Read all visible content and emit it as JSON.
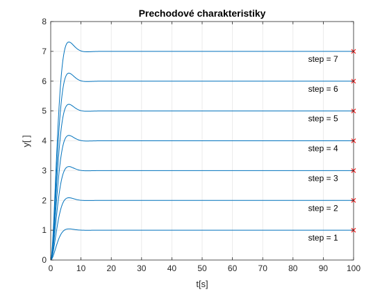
{
  "chart_data": {
    "type": "line",
    "title": "Prechodové charakteristiky",
    "xlabel": "t[s]",
    "ylabel": "y[ ]",
    "xlim": [
      0,
      100
    ],
    "ylim": [
      0,
      8
    ],
    "xticks": [
      0,
      10,
      20,
      30,
      40,
      50,
      60,
      70,
      80,
      90,
      100
    ],
    "yticks": [
      0,
      1,
      2,
      3,
      4,
      5,
      6,
      7,
      8
    ],
    "grid": true,
    "line_color": "#0072BD",
    "marker_color": "#FF0000",
    "peak_overshoot_fraction": 0.045,
    "peak_time": 6,
    "settling_time": 15,
    "series": [
      {
        "label": "step = 1",
        "final_value": 1,
        "end_marker": [
          100,
          1
        ]
      },
      {
        "label": "step = 2",
        "final_value": 2,
        "end_marker": [
          100,
          2
        ]
      },
      {
        "label": "step = 3",
        "final_value": 3,
        "end_marker": [
          100,
          3
        ]
      },
      {
        "label": "step = 4",
        "final_value": 4,
        "end_marker": [
          100,
          4
        ]
      },
      {
        "label": "step = 5",
        "final_value": 5,
        "end_marker": [
          100,
          5
        ]
      },
      {
        "label": "step = 6",
        "final_value": 6,
        "end_marker": [
          100,
          6
        ]
      },
      {
        "label": "step = 7",
        "final_value": 7,
        "end_marker": [
          100,
          7
        ]
      }
    ]
  }
}
